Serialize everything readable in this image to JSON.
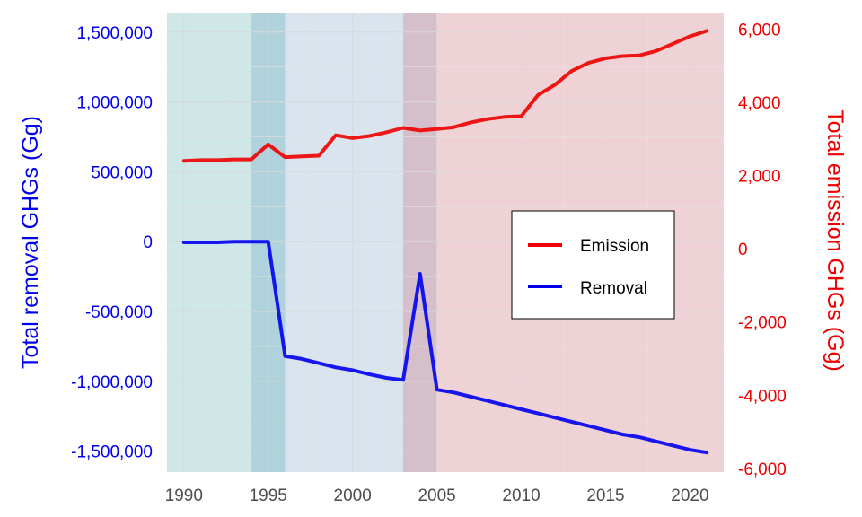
{
  "chart_data": {
    "type": "line",
    "dual_axis": true,
    "x": [
      1990,
      1991,
      1992,
      1993,
      1994,
      1995,
      1996,
      1997,
      1998,
      1999,
      2000,
      2001,
      2002,
      2003,
      2004,
      2005,
      2006,
      2007,
      2008,
      2009,
      2010,
      2011,
      2012,
      2013,
      2014,
      2015,
      2016,
      2017,
      2018,
      2019,
      2020,
      2021
    ],
    "xlim": [
      1989,
      2022
    ],
    "xticks": [
      1990,
      1995,
      2000,
      2005,
      2010,
      2015,
      2020
    ],
    "series": [
      {
        "name": "Emission",
        "axis": "right",
        "color": "#ee0000",
        "values": [
          2400,
          2420,
          2420,
          2440,
          2440,
          2850,
          2500,
          2520,
          2540,
          3100,
          3020,
          3080,
          3180,
          3300,
          3230,
          3270,
          3320,
          3450,
          3540,
          3600,
          3620,
          4200,
          4480,
          4860,
          5080,
          5200,
          5260,
          5280,
          5400,
          5600,
          5800,
          5950
        ]
      },
      {
        "name": "Removal",
        "axis": "left",
        "color": "#0000ee",
        "values": [
          -5000,
          -5000,
          -5000,
          0,
          0,
          0,
          -820000,
          -840000,
          -870000,
          -900000,
          -920000,
          -950000,
          -975000,
          -990000,
          -230000,
          -1060000,
          -1080000,
          -1110000,
          -1140000,
          -1170000,
          -1200000,
          -1230000,
          -1260000,
          -1290000,
          -1320000,
          -1350000,
          -1380000,
          -1400000,
          -1430000,
          -1460000,
          -1490000,
          -1510000
        ]
      }
    ],
    "y_left": {
      "label": "Total removal GHGs (Gg)",
      "lim": [
        -1650000,
        1640000
      ],
      "ticks": [
        1500000,
        1000000,
        500000,
        0,
        -500000,
        -1000000,
        -1500000
      ],
      "tick_labels": [
        "1,500,000",
        "1,000,000",
        "500,000",
        "0",
        "-500,000",
        "-1,000,000",
        "-1,500,000"
      ]
    },
    "y_right": {
      "label": "Total emission GHGs (Gg)",
      "lim": [
        -6100,
        6450
      ],
      "ticks": [
        6000,
        4000,
        2000,
        0,
        -2000,
        -4000,
        -6000
      ],
      "tick_labels": [
        "6,000",
        "4,000",
        "2,000",
        "0",
        "-2,000",
        "-4,000",
        "-6,000"
      ]
    },
    "x_tick_labels": [
      "1990",
      "1995",
      "2000",
      "2005",
      "2010",
      "2015",
      "2020"
    ],
    "shaded_periods": [
      {
        "from": 1989,
        "to": 1994,
        "color": "#cfe7e7"
      },
      {
        "from": 1994,
        "to": 1996,
        "color": "#b0d2dc"
      },
      {
        "from": 1996,
        "to": 2003,
        "color": "#d9e4ee"
      },
      {
        "from": 2003,
        "to": 2005,
        "color": "#d5bfcb"
      },
      {
        "from": 2005,
        "to": 2022,
        "color": "#efd2d5"
      }
    ],
    "legend": {
      "position": "right-center",
      "entries": [
        {
          "label": "Emission",
          "color": "#ee0000"
        },
        {
          "label": "Removal",
          "color": "#0000ee"
        }
      ]
    },
    "grid": true
  }
}
